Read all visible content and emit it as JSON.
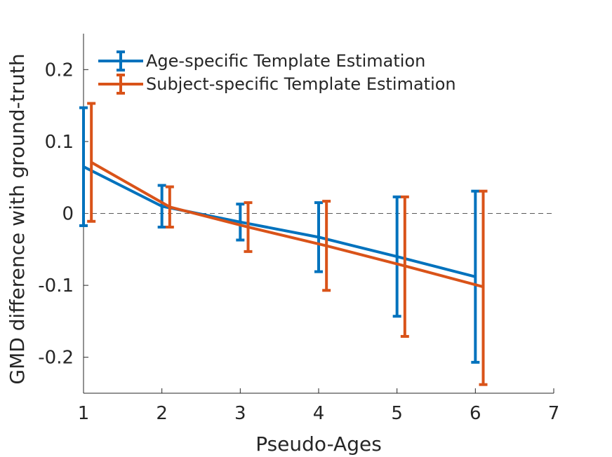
{
  "chart_data": {
    "type": "line",
    "title": "",
    "xlabel": "Pseudo-Ages",
    "ylabel": "GMD difference with ground-truth",
    "xlim": [
      1,
      7
    ],
    "ylim": [
      -0.25,
      0.25
    ],
    "xticks": [
      1,
      2,
      3,
      4,
      5,
      6,
      7
    ],
    "yticks": [
      -0.2,
      -0.1,
      0,
      0.1,
      0.2
    ],
    "xtick_labels": [
      "1",
      "2",
      "3",
      "4",
      "5",
      "6",
      "7"
    ],
    "ytick_labels": [
      "-0.2",
      "-0.1",
      "0",
      "0.1",
      "0.2"
    ],
    "reference_line": {
      "y": 0,
      "style": "dashed"
    },
    "legend_position": "top-left",
    "grid": false,
    "series": [
      {
        "name": "Age-specific Template Estimation",
        "color": "#0072BD",
        "x": [
          1,
          2,
          3,
          4,
          5,
          6
        ],
        "y": [
          0.065,
          0.01,
          -0.012,
          -0.033,
          -0.06,
          -0.088
        ],
        "err_low": [
          -0.017,
          -0.019,
          -0.037,
          -0.081,
          -0.143,
          -0.207
        ],
        "err_high": [
          0.147,
          0.039,
          0.013,
          0.015,
          0.023,
          0.031
        ]
      },
      {
        "name": "Subject-specific Template Estimation",
        "color": "#D95319",
        "x": [
          1.1,
          2.1,
          3.1,
          4.1,
          5.1,
          6.1
        ],
        "y": [
          0.071,
          0.009,
          -0.019,
          -0.045,
          -0.073,
          -0.102
        ],
        "err_low": [
          -0.011,
          -0.019,
          -0.053,
          -0.107,
          -0.171,
          -0.238
        ],
        "err_high": [
          0.153,
          0.037,
          0.015,
          0.017,
          0.023,
          0.031
        ]
      }
    ]
  }
}
